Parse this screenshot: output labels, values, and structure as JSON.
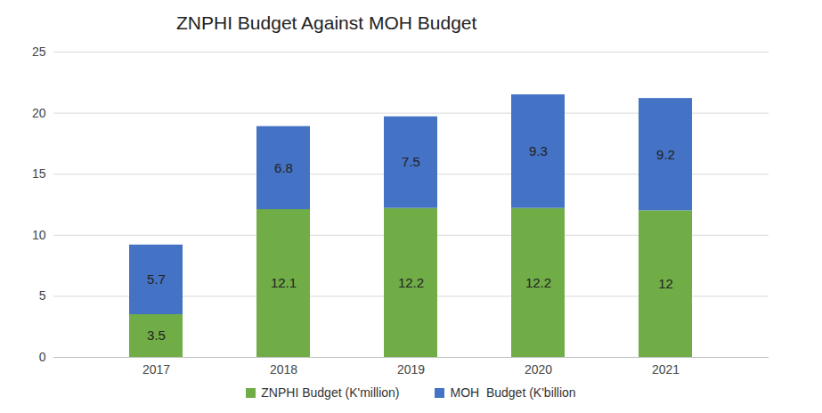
{
  "chart_data": {
    "type": "bar",
    "title": "ZNPHI Budget Against MOH Budget",
    "categories": [
      "2017",
      "2018",
      "2019",
      "2020",
      "2021"
    ],
    "series": [
      {
        "name": "ZNPHI Budget (K'million)",
        "color": "#70ad47",
        "values": [
          3.5,
          12.1,
          12.2,
          12.2,
          12
        ]
      },
      {
        "name": "MOH  Budget (K'billion",
        "color": "#4472c4",
        "values": [
          5.7,
          6.8,
          7.5,
          9.3,
          9.2
        ]
      }
    ],
    "ylim": [
      0,
      25
    ],
    "yticks": [
      0,
      5,
      10,
      15,
      20,
      25
    ],
    "stacked": true,
    "grid": true,
    "data_labels": true,
    "legend": "bottom"
  }
}
